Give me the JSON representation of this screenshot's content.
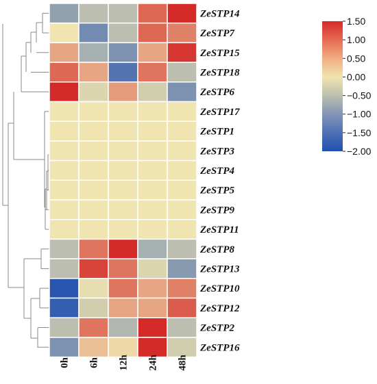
{
  "chart_data": {
    "type": "heatmap",
    "columns": [
      "0h",
      "6h",
      "12h",
      "24h",
      "48h"
    ],
    "rows": [
      "ZeSTP14",
      "ZeSTP7",
      "ZeSTP15",
      "ZeSTP18",
      "ZeSTP6",
      "ZeSTP17",
      "ZeSTP1",
      "ZeSTP3",
      "ZeSTP4",
      "ZeSTP5",
      "ZeSTP9",
      "ZeSTP11",
      "ZeSTP8",
      "ZeSTP13",
      "ZeSTP10",
      "ZeSTP12",
      "ZeSTP2",
      "ZeSTP16"
    ],
    "values": [
      [
        -0.9,
        -0.5,
        -0.5,
        1.0,
        1.5
      ],
      [
        0.0,
        -1.2,
        -0.5,
        1.0,
        0.8
      ],
      [
        0.5,
        -0.7,
        -1.1,
        0.5,
        1.4
      ],
      [
        1.0,
        0.5,
        -1.5,
        0.9,
        -0.5
      ],
      [
        1.6,
        -0.2,
        0.6,
        -0.3,
        -1.1
      ],
      [
        0.0,
        0.0,
        0.0,
        0.0,
        0.0
      ],
      [
        0.0,
        0.0,
        0.0,
        0.0,
        0.0
      ],
      [
        0.0,
        0.0,
        0.0,
        0.0,
        0.0
      ],
      [
        0.0,
        0.0,
        0.0,
        0.0,
        0.0
      ],
      [
        0.0,
        0.0,
        0.0,
        0.0,
        0.0
      ],
      [
        0.0,
        0.0,
        0.0,
        0.0,
        0.0
      ],
      [
        0.0,
        0.0,
        0.0,
        0.0,
        0.0
      ],
      [
        -0.5,
        0.9,
        1.6,
        -0.7,
        -0.5
      ],
      [
        -0.5,
        1.3,
        0.9,
        -0.2,
        -1.0
      ],
      [
        -1.9,
        -0.1,
        0.9,
        0.5,
        0.8
      ],
      [
        -1.8,
        -0.3,
        0.5,
        0.5,
        1.1
      ],
      [
        -0.5,
        0.9,
        -0.6,
        1.6,
        -0.5
      ],
      [
        -1.1,
        0.3,
        0.1,
        1.7,
        -0.3
      ]
    ],
    "colorbar": {
      "min": -2.0,
      "max": 1.5,
      "ticks": [
        "1.50",
        "1.00",
        "0.50",
        "0.00",
        "−0.50",
        "−1.00",
        "−1.50",
        "−2.00"
      ],
      "tick_values": [
        1.5,
        1.0,
        0.5,
        0.0,
        -0.5,
        -1.0,
        -1.5,
        -2.0
      ],
      "colors": {
        "low": "#1f4fb0",
        "mid": "#f0e4b0",
        "high": "#d42b28"
      }
    },
    "dendrogram": "left",
    "legend_position": "right"
  }
}
